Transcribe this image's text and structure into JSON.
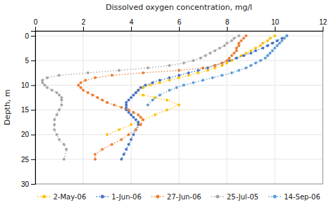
{
  "chart_data": {
    "type": "line",
    "title": "Dissolved oxygen concentration, mg/l",
    "y_label": "Depth, m",
    "xlim": [
      0,
      12
    ],
    "ylim": [
      30,
      -1
    ],
    "xticks": [
      0,
      2,
      4,
      6,
      8,
      10,
      12
    ],
    "yticks": [
      0,
      5,
      10,
      15,
      20,
      25,
      30
    ],
    "grid": true,
    "legend": "bottom",
    "marker": "circle",
    "line_style": "dotted",
    "series": [
      {
        "name": "2-May-06",
        "color": "#ffc000",
        "x": [
          10.0,
          9.8,
          9.7,
          9.5,
          9.4,
          9.2,
          9.0,
          8.8,
          8.6,
          8.4,
          8.2,
          8.0,
          7.8,
          7.5,
          7.2,
          6.8,
          6.4,
          6.0,
          5.6,
          5.2,
          4.8,
          4.5,
          4.3,
          4.2,
          4.5,
          5.0,
          5.5,
          6.0,
          5.5,
          5.0,
          4.5,
          4.0,
          3.5,
          3.0
        ],
        "values": [
          0,
          0.5,
          1,
          1.5,
          2,
          2.5,
          3,
          3.5,
          4,
          4.5,
          5,
          5.5,
          6,
          6.5,
          7,
          7.5,
          8,
          8.5,
          9,
          9.5,
          10,
          10.5,
          11,
          11.5,
          12,
          12.5,
          13,
          14,
          15,
          16,
          17,
          18,
          19,
          20
        ]
      },
      {
        "name": "1-Jun-06",
        "color": "#4472c4",
        "x": [
          10.5,
          10.3,
          10.1,
          9.9,
          9.7,
          9.5,
          9.2,
          9.0,
          8.7,
          8.4,
          8.1,
          7.8,
          7.5,
          7.2,
          6.8,
          6.4,
          6.0,
          5.6,
          5.2,
          4.9,
          4.6,
          4.4,
          4.3,
          4.2,
          4.1,
          4.0,
          3.9,
          3.8,
          3.8,
          3.8,
          3.8,
          3.9,
          4.0,
          4.1,
          4.2,
          4.3,
          4.3,
          4.2,
          4.1,
          4.0,
          3.9,
          3.8,
          3.7,
          3.6
        ],
        "values": [
          0,
          0.5,
          1,
          1.5,
          2,
          2.5,
          3,
          3.5,
          4,
          4.5,
          5,
          5.5,
          6,
          6.5,
          7,
          7.5,
          8,
          8.5,
          9,
          9.5,
          10,
          10.5,
          11,
          11.5,
          12,
          12.5,
          13,
          13.5,
          14,
          14.5,
          15,
          15.5,
          16,
          16.5,
          17,
          17.5,
          18,
          19,
          20,
          21,
          22,
          23,
          24,
          25
        ]
      },
      {
        "name": "27-Jun-06",
        "color": "#ed7d31",
        "x": [
          8.8,
          8.7,
          8.6,
          8.5,
          8.5,
          8.4,
          8.4,
          8.3,
          8.2,
          8.1,
          8.0,
          7.8,
          7.5,
          7.0,
          6.0,
          4.5,
          3.2,
          2.5,
          2.1,
          1.9,
          1.8,
          1.9,
          2.0,
          2.2,
          2.4,
          2.6,
          2.8,
          3.0,
          3.3,
          3.6,
          3.9,
          4.1,
          4.3,
          4.4,
          4.5,
          4.4,
          4.2,
          3.9,
          3.6,
          3.2,
          2.8,
          2.5,
          2.5
        ],
        "values": [
          0,
          0.5,
          1,
          1.5,
          2,
          2.5,
          3,
          3.5,
          4,
          4.5,
          5,
          5.5,
          6,
          6.5,
          7,
          7.5,
          8,
          8.5,
          9,
          9.5,
          10,
          10.5,
          11,
          11.5,
          12,
          12.5,
          13,
          13.5,
          14,
          14.5,
          15,
          15.5,
          16,
          16.5,
          17,
          18,
          19,
          20,
          21,
          22,
          23,
          24,
          25
        ]
      },
      {
        "name": "25-Jul-05",
        "color": "#a5a5a5",
        "x": [
          8.5,
          8.3,
          8.2,
          8.0,
          7.9,
          7.7,
          7.5,
          7.3,
          7.1,
          6.9,
          6.6,
          6.2,
          5.6,
          4.7,
          3.5,
          2.2,
          1.0,
          0.5,
          0.3,
          0.3,
          0.4,
          0.5,
          0.7,
          0.9,
          1.0,
          1.1,
          1.1,
          1.1,
          1.0,
          0.9,
          0.8,
          0.8,
          0.8,
          0.9,
          1.0,
          1.2,
          1.3,
          1.2
        ],
        "values": [
          0,
          0.5,
          1,
          1.5,
          2,
          2.5,
          3,
          3.5,
          4,
          4.5,
          5,
          5.5,
          6,
          6.5,
          7,
          7.5,
          8,
          8.5,
          9,
          9.5,
          10,
          10.5,
          11,
          11.5,
          12,
          12.5,
          13,
          14,
          15,
          16,
          17,
          18,
          19,
          20,
          21,
          22,
          23,
          25
        ]
      },
      {
        "name": "14-Sep-06",
        "color": "#5b9bd5",
        "x": [
          10.5,
          10.4,
          10.3,
          10.2,
          10.1,
          10.0,
          9.9,
          9.8,
          9.7,
          9.6,
          9.4,
          9.2,
          9.0,
          8.8,
          8.5,
          8.2,
          7.8,
          7.4,
          7.0,
          6.6,
          6.2,
          5.9,
          5.6,
          5.2,
          4.9,
          4.7
        ],
        "values": [
          0,
          0.5,
          1,
          1.5,
          2,
          2.5,
          3,
          3.5,
          4,
          4.5,
          5,
          5.5,
          6,
          6.5,
          7,
          7.5,
          8,
          8.5,
          9,
          9.5,
          10,
          10.5,
          11,
          12,
          13,
          14
        ]
      }
    ]
  }
}
